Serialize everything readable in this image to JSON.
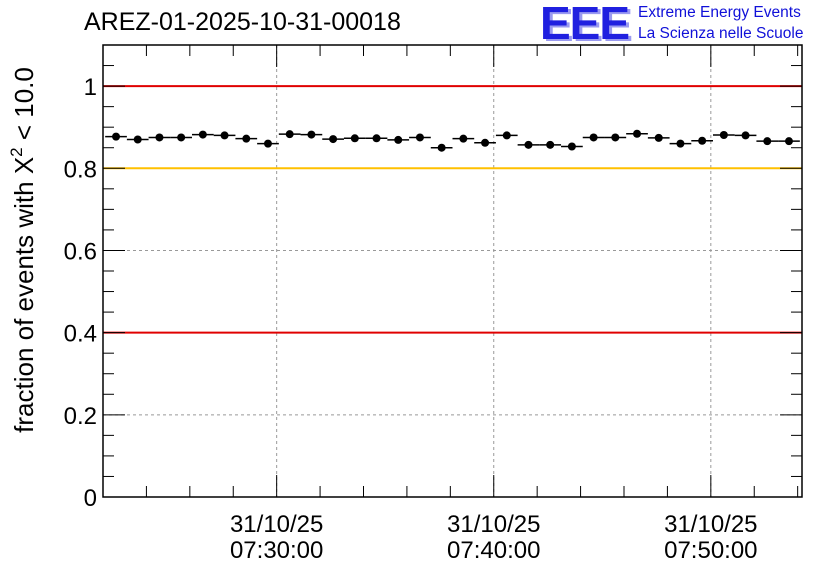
{
  "title": "AREZ-01-2025-10-31-00018",
  "logo": {
    "mark": "EEE",
    "line1": "Extreme Energy Events",
    "line2": "La Scienza nelle Scuole"
  },
  "colors": {
    "threshold_red": "#e00000",
    "threshold_yellow": "#ffc000",
    "marker": "#000000",
    "grid": "#999999",
    "logo_blue": "#2020e0"
  },
  "chart_data": {
    "type": "scatter",
    "title": "AREZ-01-2025-10-31-00018",
    "xlabel": "",
    "ylabel_prefix": "fraction of events with X",
    "ylabel_superscript": "2",
    "ylabel_suffix": " < 10.0",
    "ylim": [
      0,
      1.1
    ],
    "y_ticks": [
      "0",
      "0.2",
      "0.4",
      "0.6",
      "0.8",
      "1"
    ],
    "y_tick_values": [
      0,
      0.2,
      0.4,
      0.6,
      0.8,
      1.0
    ],
    "x_range_minutes": [
      22.0,
      54.2
    ],
    "x_ticks": [
      {
        "minute": 30,
        "date": "31/10/25",
        "time": "07:30:00"
      },
      {
        "minute": 40,
        "date": "31/10/25",
        "time": "07:40:00"
      },
      {
        "minute": 50,
        "date": "31/10/25",
        "time": "07:50:00"
      }
    ],
    "bin_width_minutes": 1.0,
    "x_minutes": [
      22.6,
      23.6,
      24.6,
      25.6,
      26.6,
      27.6,
      28.6,
      29.6,
      30.6,
      31.6,
      32.6,
      33.6,
      34.6,
      35.6,
      36.6,
      37.6,
      38.6,
      39.6,
      40.6,
      41.6,
      42.6,
      43.6,
      44.6,
      45.6,
      46.6,
      47.6,
      48.6,
      49.6,
      50.6,
      51.6,
      52.6,
      53.6
    ],
    "values": [
      0.877,
      0.87,
      0.875,
      0.875,
      0.882,
      0.88,
      0.872,
      0.86,
      0.883,
      0.882,
      0.871,
      0.873,
      0.873,
      0.869,
      0.875,
      0.85,
      0.872,
      0.862,
      0.88,
      0.857,
      0.857,
      0.853,
      0.875,
      0.875,
      0.884,
      0.874,
      0.86,
      0.867,
      0.881,
      0.88,
      0.866,
      0.866
    ],
    "thresholds": [
      {
        "value": 1.0,
        "color": "#e00000"
      },
      {
        "value": 0.8,
        "color": "#ffc000"
      },
      {
        "value": 0.4,
        "color": "#e00000"
      }
    ],
    "grid": true,
    "legend": "none"
  }
}
